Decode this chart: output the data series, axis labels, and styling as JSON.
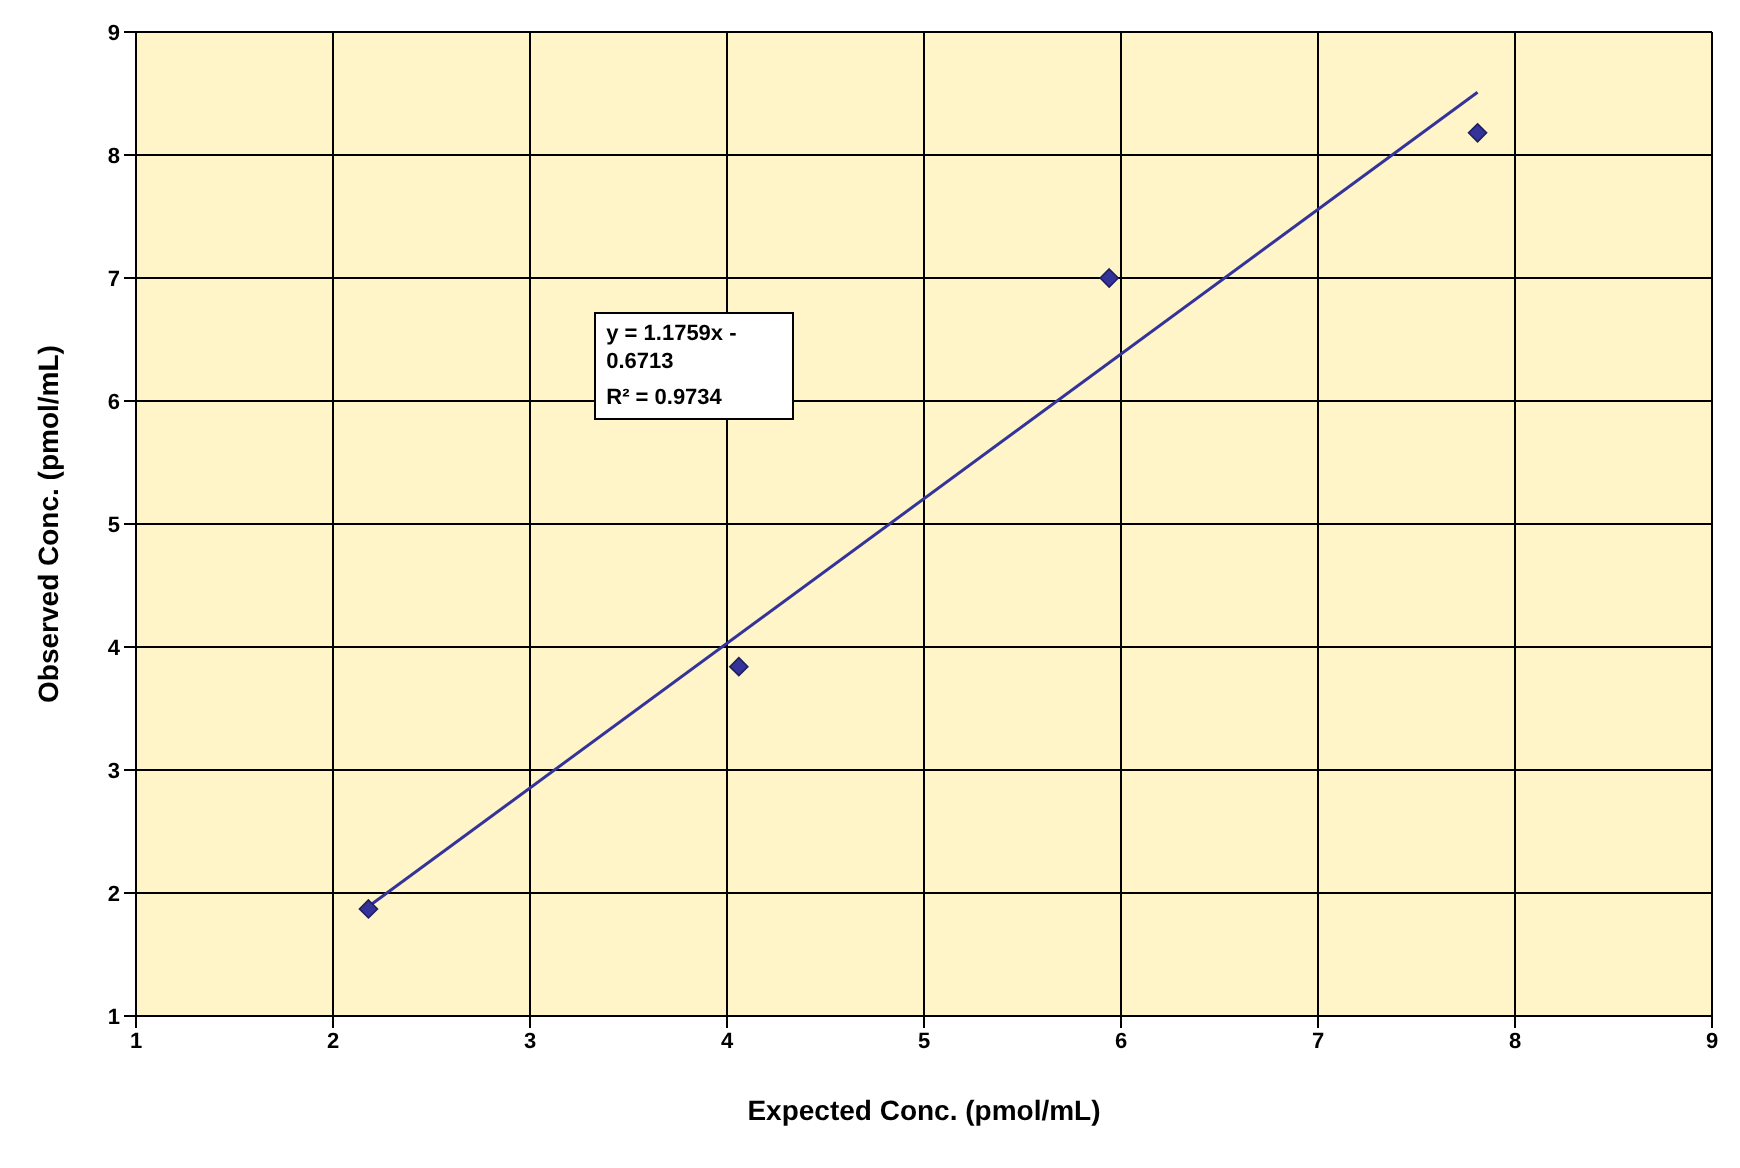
{
  "chart_data": {
    "type": "scatter",
    "xlabel": "Expected Conc. (pmol/mL)",
    "ylabel": "Observed Conc. (pmol/mL)",
    "xlim": [
      1,
      9
    ],
    "ylim": [
      1,
      9
    ],
    "xticks": [
      1,
      2,
      3,
      4,
      5,
      6,
      7,
      8,
      9
    ],
    "yticks": [
      1,
      2,
      3,
      4,
      5,
      6,
      7,
      8,
      9
    ],
    "grid": true,
    "series": [
      {
        "color": "#333399",
        "marker": "diamond",
        "x": [
          2.18,
          4.06,
          5.94,
          7.81
        ],
        "values": [
          1.87,
          3.84,
          7.0,
          8.18
        ]
      },
      {
        "type": "line",
        "color": "#333399",
        "marker": "none",
        "x": [
          2.18,
          7.81
        ],
        "values": [
          1.89,
          8.51
        ]
      }
    ],
    "annotations": [
      "y = 1.1759x - 0.6713",
      "R² = 0.9734"
    ]
  }
}
